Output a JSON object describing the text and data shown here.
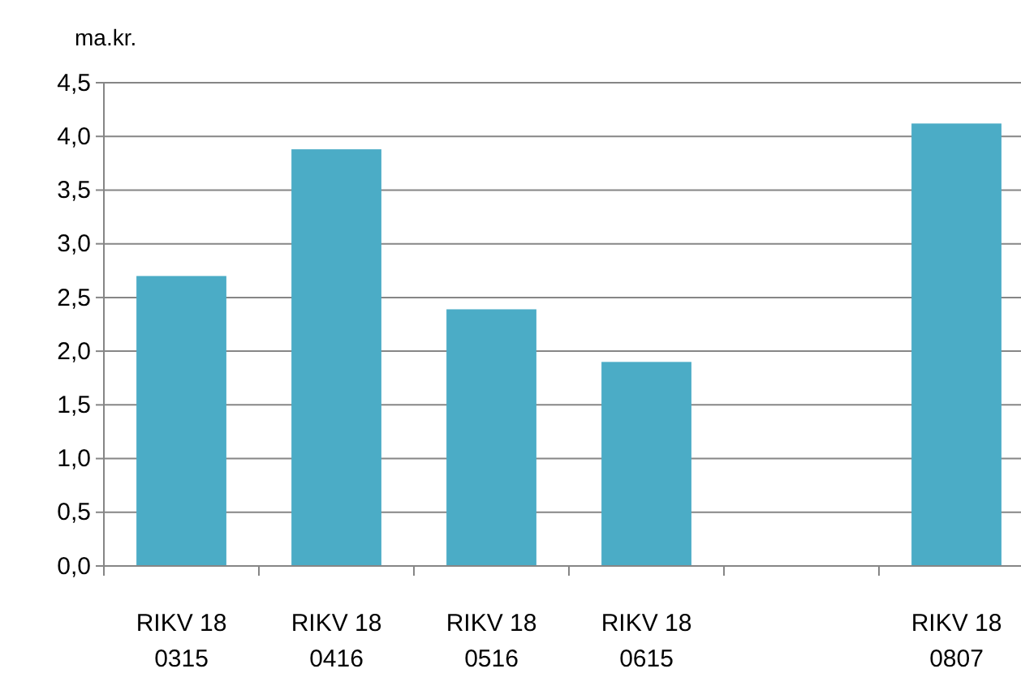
{
  "chart_data": {
    "type": "bar",
    "ylabel": "ma.kr.",
    "categories": [
      "RIKV 18 0315",
      "RIKV 18 0416",
      "RIKV 18 0516",
      "RIKV 18 0615",
      null,
      "RIKV 18 0807"
    ],
    "values": [
      2.7,
      3.88,
      2.39,
      1.9,
      null,
      4.12
    ],
    "color": "#4bacc6",
    "ylim": [
      0,
      4.5
    ],
    "yticks": [
      {
        "value": 0,
        "label": "0,0"
      },
      {
        "value": 0.5,
        "label": "0,5"
      },
      {
        "value": 1,
        "label": "1,0"
      },
      {
        "value": 1.5,
        "label": "1,5"
      },
      {
        "value": 2,
        "label": "2,0"
      },
      {
        "value": 2.5,
        "label": "2,5"
      },
      {
        "value": 3,
        "label": "3,0"
      },
      {
        "value": 3.5,
        "label": "3,5"
      },
      {
        "value": 4,
        "label": "4,0"
      },
      {
        "value": 4.5,
        "label": "4,5"
      }
    ],
    "grid": "y"
  }
}
